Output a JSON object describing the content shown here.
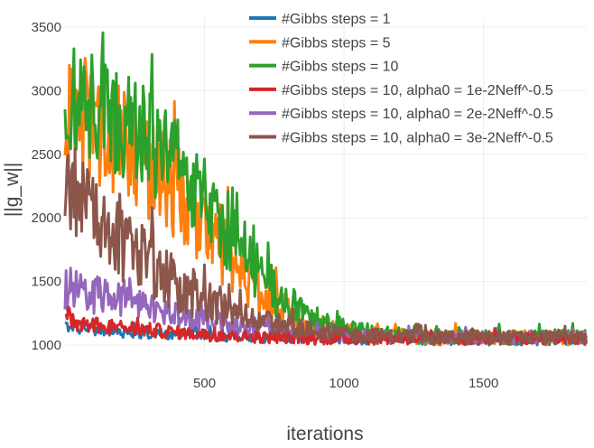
{
  "chart_data": {
    "type": "line",
    "title": "",
    "xlabel": "iterations",
    "ylabel": "||g_w||",
    "xlim": [
      0,
      1870
    ],
    "ylim": [
      930,
      3570
    ],
    "xticks": [
      500,
      1000,
      1500
    ],
    "yticks": [
      1000,
      1500,
      2000,
      2500,
      3000,
      3500
    ],
    "grid": true,
    "legend": "top-right",
    "series": [
      {
        "name": "#Gibbs steps = 1",
        "color": "#1f77b4",
        "x": [
          0,
          50,
          100,
          150,
          200,
          250,
          300,
          350,
          400,
          450,
          500,
          550,
          600,
          650,
          700,
          750,
          800,
          850,
          900,
          950,
          1000,
          1050,
          1100,
          1150,
          1200,
          1250,
          1300,
          1350,
          1400,
          1450,
          1500,
          1550,
          1600,
          1650,
          1700,
          1750,
          1800,
          1850
        ],
        "y": [
          1150,
          1130,
          1120,
          1110,
          1100,
          1100,
          1090,
          1090,
          1080,
          1080,
          1080,
          1070,
          1070,
          1060,
          1060,
          1060,
          1060,
          1050,
          1050,
          1050,
          1050,
          1050,
          1040,
          1040,
          1040,
          1040,
          1040,
          1040,
          1040,
          1040,
          1040,
          1040,
          1040,
          1040,
          1040,
          1040,
          1040,
          1040
        ],
        "noise": [
          40,
          40,
          40,
          40,
          40,
          40,
          40,
          40,
          40,
          40,
          40,
          40,
          40,
          40,
          40,
          40,
          40,
          40,
          40,
          40,
          40,
          40,
          40,
          40,
          40,
          40,
          40,
          40,
          40,
          40,
          40,
          40,
          40,
          40,
          40,
          40,
          40,
          40
        ]
      },
      {
        "name": "#Gibbs steps = 5",
        "color": "#ff7f0e",
        "x": [
          0,
          50,
          100,
          150,
          200,
          250,
          300,
          350,
          400,
          450,
          500,
          550,
          600,
          650,
          700,
          750,
          800,
          850,
          900,
          950,
          1000,
          1050,
          1100,
          1150,
          1200,
          1250,
          1300,
          1350,
          1400,
          1450,
          1500,
          1550,
          1600,
          1650,
          1700,
          1750,
          1800,
          1850
        ],
        "y": [
          2800,
          2750,
          2700,
          2650,
          2600,
          2500,
          2400,
          2300,
          2200,
          2050,
          1900,
          1800,
          1700,
          1550,
          1400,
          1300,
          1250,
          1180,
          1150,
          1120,
          1100,
          1090,
          1080,
          1070,
          1070,
          1060,
          1060,
          1060,
          1060,
          1060,
          1060,
          1060,
          1060,
          1060,
          1060,
          1060,
          1060,
          1060
        ],
        "noise": [
          450,
          450,
          450,
          440,
          430,
          420,
          410,
          400,
          380,
          360,
          340,
          320,
          300,
          260,
          220,
          180,
          150,
          120,
          100,
          90,
          80,
          70,
          60,
          60,
          60,
          60,
          60,
          60,
          60,
          60,
          60,
          60,
          60,
          60,
          60,
          60,
          60,
          60
        ]
      },
      {
        "name": "#Gibbs steps = 10",
        "color": "#2ca02c",
        "x": [
          0,
          50,
          100,
          150,
          200,
          250,
          300,
          350,
          400,
          450,
          500,
          550,
          600,
          650,
          700,
          750,
          800,
          850,
          900,
          950,
          1000,
          1050,
          1100,
          1150,
          1200,
          1250,
          1300,
          1350,
          1400,
          1450,
          1500,
          1550,
          1600,
          1650,
          1700,
          1750,
          1800,
          1850
        ],
        "y": [
          2900,
          2880,
          2850,
          2800,
          2750,
          2700,
          2600,
          2500,
          2400,
          2300,
          2150,
          2000,
          1850,
          1700,
          1550,
          1420,
          1320,
          1250,
          1200,
          1160,
          1130,
          1110,
          1100,
          1090,
          1080,
          1070,
          1070,
          1070,
          1060,
          1060,
          1060,
          1060,
          1060,
          1060,
          1060,
          1060,
          1060,
          1060
        ],
        "noise": [
          450,
          450,
          450,
          450,
          440,
          430,
          420,
          410,
          390,
          370,
          350,
          330,
          300,
          270,
          230,
          190,
          160,
          130,
          110,
          90,
          80,
          70,
          70,
          60,
          60,
          60,
          60,
          60,
          60,
          60,
          60,
          60,
          60,
          60,
          60,
          60,
          60,
          60
        ]
      },
      {
        "name": "#Gibbs steps = 10, alpha0 = 1e-2Neff^-0.5",
        "color": "#d62728",
        "x": [
          0,
          50,
          100,
          150,
          200,
          250,
          300,
          350,
          400,
          450,
          500,
          550,
          600,
          650,
          700,
          750,
          800,
          850,
          900,
          950,
          1000,
          1050,
          1100,
          1150,
          1200,
          1250,
          1300,
          1350,
          1400,
          1450,
          1500,
          1550,
          1600,
          1650,
          1700,
          1750,
          1800,
          1850
        ],
        "y": [
          1200,
          1180,
          1160,
          1150,
          1140,
          1130,
          1120,
          1110,
          1100,
          1090,
          1080,
          1080,
          1070,
          1070,
          1060,
          1060,
          1060,
          1050,
          1050,
          1050,
          1050,
          1050,
          1050,
          1050,
          1050,
          1050,
          1050,
          1050,
          1050,
          1050,
          1050,
          1050,
          1050,
          1050,
          1050,
          1050,
          1050,
          1050
        ],
        "noise": [
          70,
          70,
          70,
          60,
          60,
          60,
          55,
          55,
          50,
          50,
          50,
          50,
          45,
          45,
          45,
          45,
          45,
          45,
          45,
          45,
          45,
          45,
          45,
          45,
          45,
          45,
          45,
          45,
          45,
          45,
          45,
          45,
          45,
          45,
          45,
          45,
          45,
          45
        ]
      },
      {
        "name": "#Gibbs steps = 10, alpha0 = 2e-2Neff^-0.5",
        "color": "#9467bd",
        "x": [
          0,
          50,
          100,
          150,
          200,
          250,
          300,
          350,
          400,
          450,
          500,
          550,
          600,
          650,
          700,
          750,
          800,
          850,
          900,
          950,
          1000,
          1050,
          1100,
          1150,
          1200,
          1250,
          1300,
          1350,
          1400,
          1450,
          1500,
          1550,
          1600,
          1650,
          1700,
          1750,
          1800,
          1850
        ],
        "y": [
          1450,
          1430,
          1400,
          1380,
          1350,
          1320,
          1300,
          1270,
          1240,
          1210,
          1190,
          1170,
          1150,
          1130,
          1120,
          1110,
          1100,
          1090,
          1080,
          1080,
          1070,
          1070,
          1070,
          1060,
          1060,
          1060,
          1060,
          1060,
          1060,
          1060,
          1060,
          1060,
          1060,
          1060,
          1060,
          1060,
          1060,
          1060
        ],
        "noise": [
          180,
          170,
          160,
          150,
          140,
          130,
          120,
          110,
          100,
          95,
          90,
          85,
          80,
          75,
          70,
          65,
          60,
          55,
          55,
          55,
          50,
          50,
          50,
          50,
          50,
          50,
          50,
          50,
          50,
          50,
          50,
          50,
          50,
          50,
          50,
          50,
          50,
          50
        ]
      },
      {
        "name": "#Gibbs steps = 10, alpha0 = 3e-2Neff^-0.5",
        "color": "#8c564b",
        "x": [
          0,
          50,
          100,
          150,
          200,
          250,
          300,
          350,
          400,
          450,
          500,
          550,
          600,
          650,
          700,
          750,
          800,
          850,
          900,
          950,
          1000,
          1050,
          1100,
          1150,
          1200,
          1250,
          1300,
          1350,
          1400,
          1450,
          1500,
          1550,
          1600,
          1650,
          1700,
          1750,
          1800,
          1850
        ],
        "y": [
          2150,
          2100,
          2000,
          1900,
          1800,
          1720,
          1640,
          1560,
          1480,
          1420,
          1360,
          1310,
          1270,
          1230,
          1200,
          1170,
          1150,
          1130,
          1110,
          1100,
          1090,
          1080,
          1080,
          1070,
          1070,
          1070,
          1060,
          1060,
          1060,
          1060,
          1060,
          1060,
          1060,
          1060,
          1060,
          1060,
          1060,
          1060
        ],
        "noise": [
          380,
          360,
          340,
          320,
          300,
          280,
          260,
          240,
          220,
          200,
          180,
          160,
          140,
          120,
          100,
          90,
          80,
          75,
          70,
          65,
          60,
          60,
          60,
          55,
          55,
          55,
          55,
          55,
          55,
          55,
          55,
          55,
          55,
          55,
          55,
          55,
          55,
          55
        ]
      }
    ]
  }
}
